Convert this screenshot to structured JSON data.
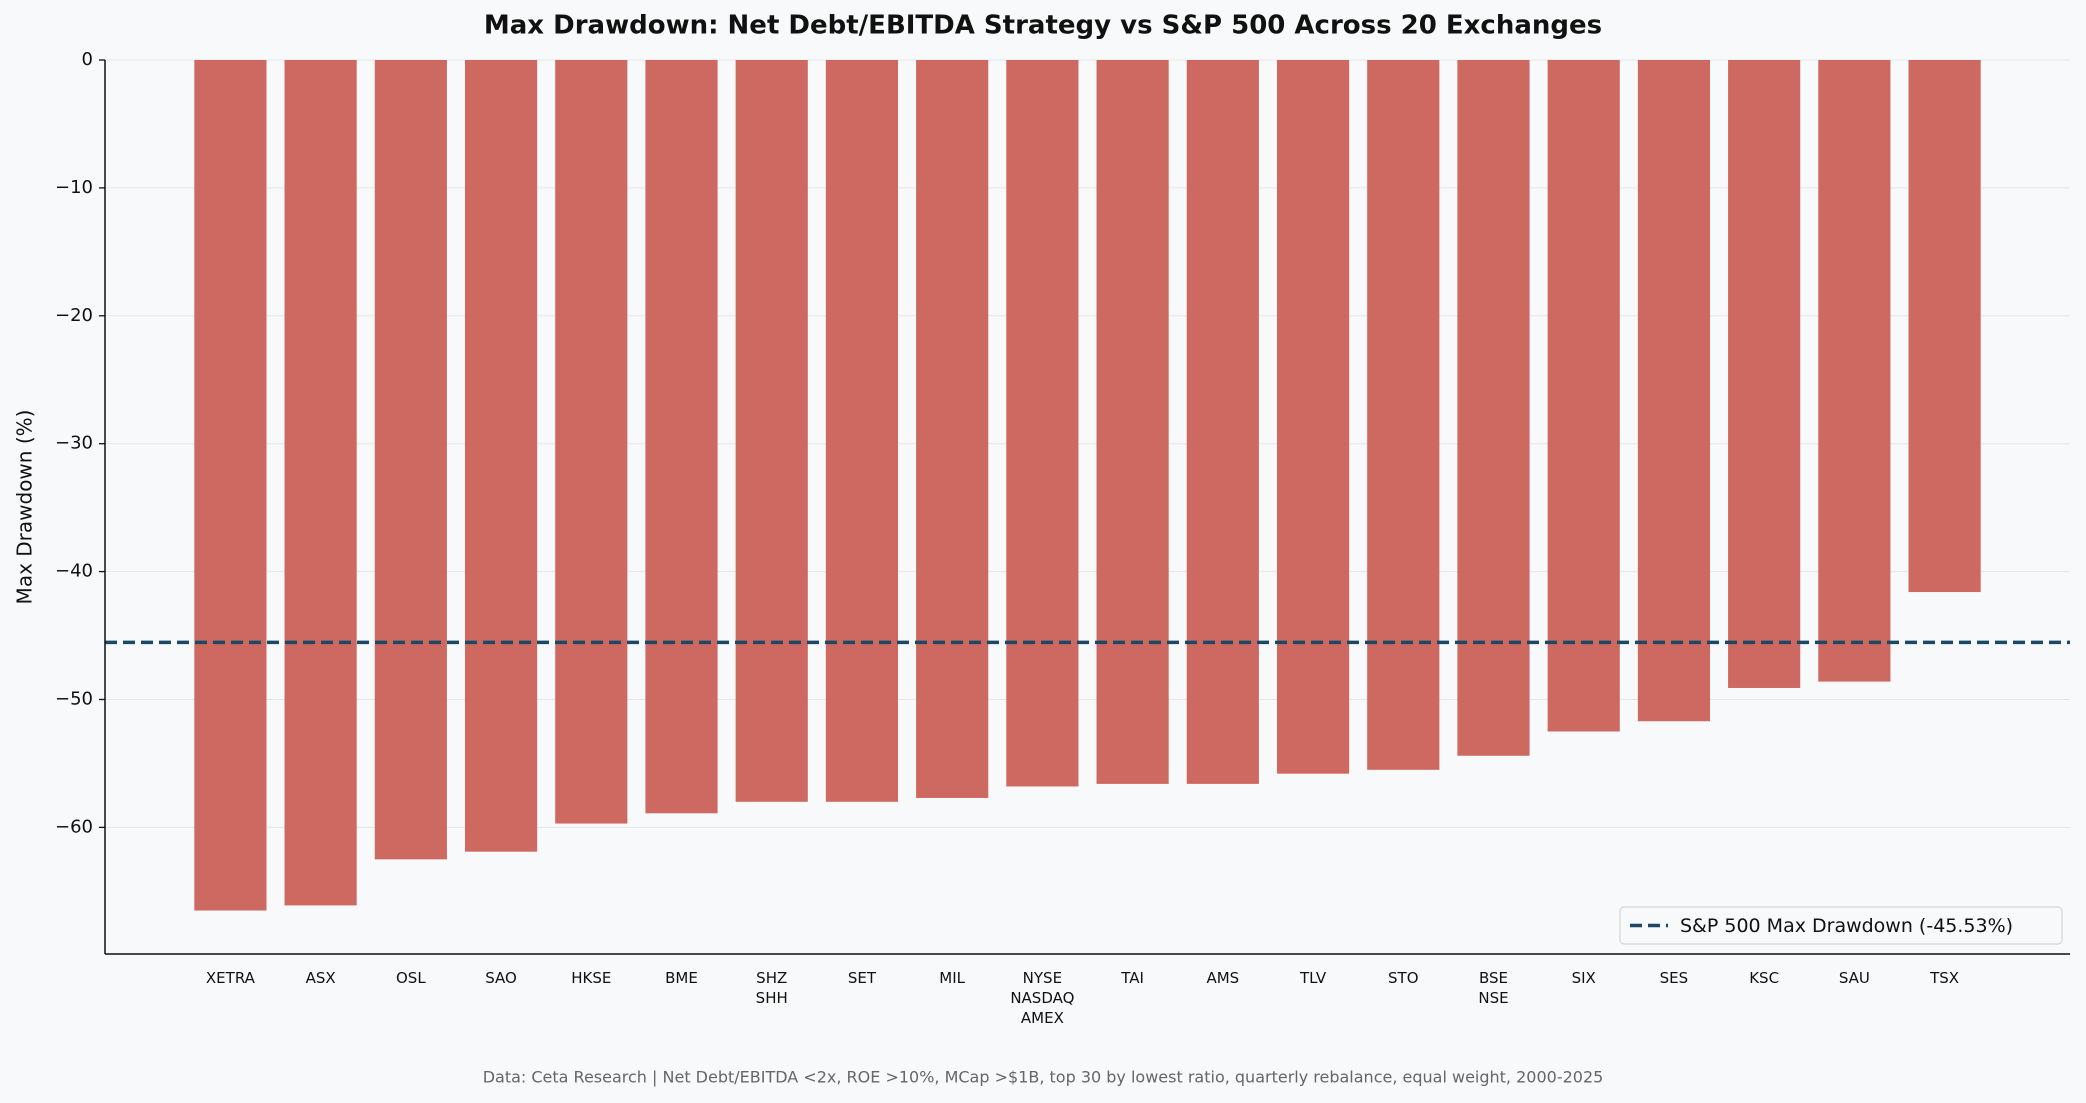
{
  "chart_data": {
    "type": "bar",
    "title": "Max Drawdown: Net Debt/EBITDA Strategy vs S&P 500 Across 20 Exchanges",
    "y_label": "Max Drawdown (%)",
    "footnote": "Data: Ceta Research | Net Debt/EBITDA <2x, ROE >10%, MCap >$1B, top 30 by lowest ratio, quarterly rebalance, equal weight, 2000-2025",
    "categories": [
      "XETRA",
      "ASX",
      "OSL",
      "SAO",
      "HKSE",
      "BME",
      "SHZ\nSHH",
      "SET",
      "MIL",
      "NYSE\nNASDAQ\nAMEX",
      "TAI",
      "AMS",
      "TLV",
      "STO",
      "BSE\nNSE",
      "SIX",
      "SES",
      "KSC",
      "SAU",
      "TSX"
    ],
    "values": [
      -66.5,
      -66.1,
      -62.5,
      -61.9,
      -59.7,
      -58.9,
      -58.0,
      -58.0,
      -57.7,
      -56.8,
      -56.6,
      -56.6,
      -55.8,
      -55.5,
      -54.4,
      -52.5,
      -51.7,
      -49.1,
      -48.6,
      -41.6
    ],
    "color": "#cd6960",
    "ylim": [
      -69.9,
      0
    ],
    "yticks": [
      0,
      {
        "value": -10,
        "label": "−10"
      },
      {
        "value": -20,
        "label": "−20"
      },
      {
        "value": -30,
        "label": "−30"
      },
      {
        "value": -40,
        "label": "−40"
      },
      {
        "value": -50,
        "label": "−50"
      },
      {
        "value": -60,
        "label": "−60"
      }
    ],
    "grid": true,
    "reference_line": {
      "value": -45.53,
      "name": "S&P 500 Max Drawdown (-45.53%)",
      "color": "#1b4965"
    },
    "legend_position": "lower right"
  }
}
